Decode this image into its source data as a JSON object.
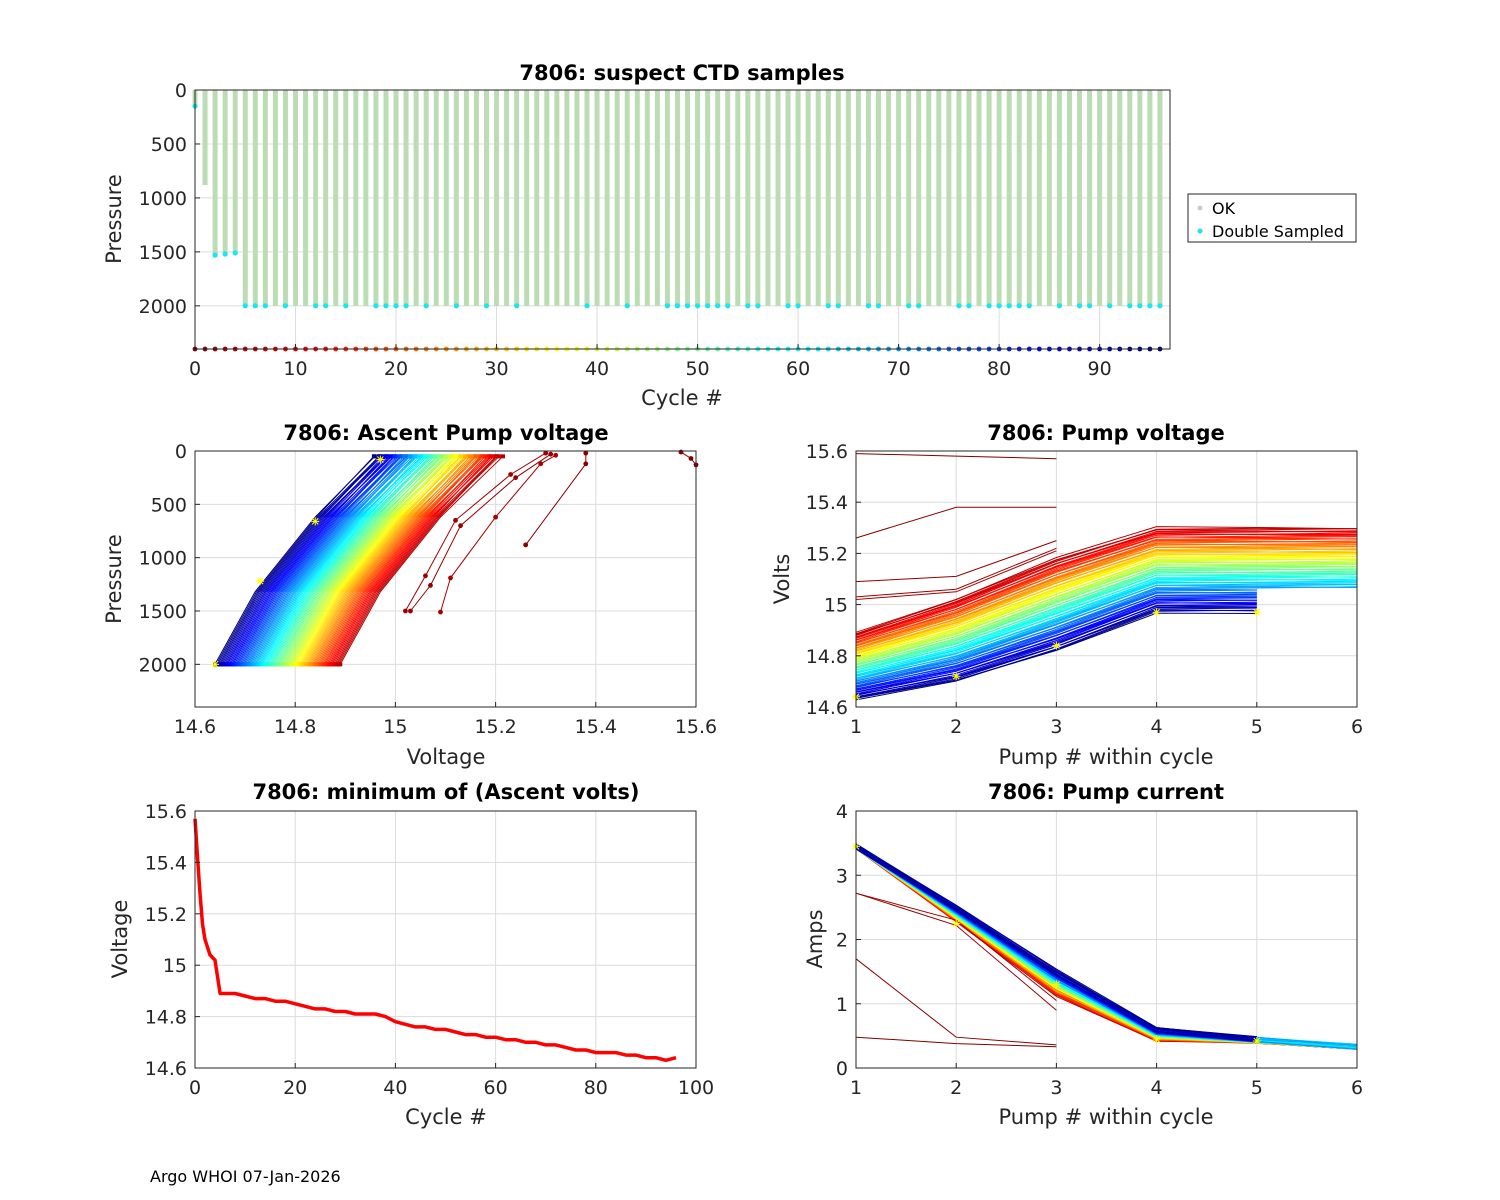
{
  "footer": "Argo WHOI 07-Jan-2026",
  "colors": {
    "ok": "#bcdcb4",
    "double_sampled": "#18e6f0",
    "min_volts_line": "#ff0000",
    "marker": "#ffff00"
  },
  "chart_data": [
    {
      "id": "suspect_ctd",
      "type": "scatter",
      "title": "7806: suspect CTD samples",
      "xlabel": "Cycle #",
      "ylabel": "Pressure",
      "xlim": [
        0,
        97
      ],
      "ylim": [
        0,
        2400
      ],
      "y_reversed": true,
      "xticks": [
        "0",
        "10",
        "20",
        "30",
        "40",
        "50",
        "60",
        "70",
        "80",
        "90"
      ],
      "yticks": [
        "0",
        "500",
        "1000",
        "1500",
        "2000"
      ],
      "legend": {
        "position": "outside-right",
        "entries": [
          {
            "label": "OK",
            "color": "#c8c8c8"
          },
          {
            "label": "Double Sampled",
            "color": "#18e6f0"
          }
        ]
      },
      "profiles": {
        "cycles_first": 0,
        "cycles_last": 96,
        "max_pressure_by_cycle": {
          "0": 150,
          "1": 880,
          "2": 1520,
          "3": 1510,
          "4": 1500,
          "default": 2000
        }
      },
      "double_sampled": [
        {
          "cycle": 0,
          "pressure": 150
        },
        {
          "cycle": 2,
          "pressure": 1530
        },
        {
          "cycle": 3,
          "pressure": 1520
        },
        {
          "cycle": 4,
          "pressure": 1510
        },
        {
          "cycle": 5,
          "pressure": 2000
        },
        {
          "cycle": 6,
          "pressure": 2000
        },
        {
          "cycle": 7,
          "pressure": 2000
        },
        {
          "cycle": 9,
          "pressure": 2000
        },
        {
          "cycle": 12,
          "pressure": 2000
        },
        {
          "cycle": 13,
          "pressure": 2000
        },
        {
          "cycle": 15,
          "pressure": 2000
        },
        {
          "cycle": 18,
          "pressure": 2000
        },
        {
          "cycle": 19,
          "pressure": 2000
        },
        {
          "cycle": 20,
          "pressure": 2000
        },
        {
          "cycle": 21,
          "pressure": 2000
        },
        {
          "cycle": 23,
          "pressure": 2000
        },
        {
          "cycle": 26,
          "pressure": 2000
        },
        {
          "cycle": 29,
          "pressure": 2000
        },
        {
          "cycle": 32,
          "pressure": 2000
        },
        {
          "cycle": 39,
          "pressure": 2000
        },
        {
          "cycle": 43,
          "pressure": 2000
        },
        {
          "cycle": 47,
          "pressure": 2000
        },
        {
          "cycle": 48,
          "pressure": 2000
        },
        {
          "cycle": 49,
          "pressure": 2000
        },
        {
          "cycle": 50,
          "pressure": 2000
        },
        {
          "cycle": 51,
          "pressure": 2000
        },
        {
          "cycle": 52,
          "pressure": 2000
        },
        {
          "cycle": 53,
          "pressure": 2000
        },
        {
          "cycle": 55,
          "pressure": 2000
        },
        {
          "cycle": 56,
          "pressure": 2000
        },
        {
          "cycle": 59,
          "pressure": 2000
        },
        {
          "cycle": 60,
          "pressure": 2000
        },
        {
          "cycle": 63,
          "pressure": 2000
        },
        {
          "cycle": 64,
          "pressure": 2000
        },
        {
          "cycle": 67,
          "pressure": 2000
        },
        {
          "cycle": 68,
          "pressure": 2000
        },
        {
          "cycle": 71,
          "pressure": 2000
        },
        {
          "cycle": 72,
          "pressure": 2000
        },
        {
          "cycle": 76,
          "pressure": 2000
        },
        {
          "cycle": 77,
          "pressure": 2000
        },
        {
          "cycle": 79,
          "pressure": 2000
        },
        {
          "cycle": 80,
          "pressure": 2000
        },
        {
          "cycle": 81,
          "pressure": 2000
        },
        {
          "cycle": 82,
          "pressure": 2000
        },
        {
          "cycle": 83,
          "pressure": 2000
        },
        {
          "cycle": 86,
          "pressure": 2000
        },
        {
          "cycle": 88,
          "pressure": 2000
        },
        {
          "cycle": 89,
          "pressure": 2000
        },
        {
          "cycle": 91,
          "pressure": 2000
        },
        {
          "cycle": 93,
          "pressure": 2000
        },
        {
          "cycle": 94,
          "pressure": 2000
        },
        {
          "cycle": 95,
          "pressure": 2000
        },
        {
          "cycle": 96,
          "pressure": 2000
        }
      ],
      "cycle_marker_row_pressure": 2400
    },
    {
      "id": "ascent_pump_voltage",
      "type": "line",
      "title": "7806: Ascent Pump voltage",
      "xlabel": "Voltage",
      "ylabel": "Pressure",
      "xlim": [
        14.6,
        15.6
      ],
      "ylim": [
        0,
        2400
      ],
      "y_reversed": true,
      "xticks": [
        "14.6",
        "14.8",
        "15",
        "15.2",
        "15.4",
        "15.6"
      ],
      "yticks": [
        "0",
        "500",
        "1000",
        "1500",
        "2000"
      ],
      "series_colormap": "jet (cycle 0 = dark red ... cycle 96 = dark blue)",
      "profile_model": {
        "pressures": [
          2000,
          1320,
          620,
          50
        ],
        "shifts": [
          0,
          0.08,
          0.2,
          0.32
        ],
        "start_voltage_first_cycle": 14.89,
        "start_voltage_last_cycle": 14.64
      },
      "early_cycles": [
        {
          "cycle": 0,
          "points": [
            [
              15.57,
              10
            ],
            [
              15.59,
              70
            ],
            [
              15.6,
              130
            ]
          ]
        },
        {
          "cycle": 1,
          "points": [
            [
              15.26,
              880
            ],
            [
              15.38,
              120
            ],
            [
              15.38,
              20
            ]
          ]
        },
        {
          "cycle": 2,
          "points": [
            [
              15.03,
              1500
            ],
            [
              15.07,
              1260
            ],
            [
              15.13,
              700
            ],
            [
              15.24,
              250
            ],
            [
              15.31,
              30
            ]
          ]
        },
        {
          "cycle": 3,
          "points": [
            [
              15.02,
              1500
            ],
            [
              15.06,
              1170
            ],
            [
              15.12,
              650
            ],
            [
              15.23,
              220
            ],
            [
              15.3,
              20
            ]
          ]
        },
        {
          "cycle": 4,
          "points": [
            [
              15.09,
              1510
            ],
            [
              15.11,
              1190
            ],
            [
              15.2,
              620
            ],
            [
              15.29,
              120
            ],
            [
              15.32,
              40
            ]
          ]
        }
      ],
      "highlight_markers": [
        [
          14.64,
          2000
        ],
        [
          14.73,
          1220
        ],
        [
          14.84,
          660
        ],
        [
          14.97,
          80
        ]
      ]
    },
    {
      "id": "pump_voltage",
      "type": "line",
      "title": "7806: Pump voltage",
      "xlabel": "Pump # within cycle",
      "ylabel": "Volts",
      "xlim": [
        1,
        6
      ],
      "ylim": [
        14.6,
        15.6
      ],
      "xticks": [
        "1",
        "2",
        "3",
        "4",
        "5",
        "6"
      ],
      "yticks": [
        "14.6",
        "14.8",
        "15",
        "15.2",
        "15.4",
        "15.6"
      ],
      "series_colormap": "jet (cycle 0 = dark red ... cycle 96 = dark blue)",
      "early_cycles": [
        {
          "cycle": 0,
          "values": [
            15.59,
            15.58,
            15.57
          ]
        },
        {
          "cycle": 1,
          "values": [
            15.26,
            15.38,
            15.38
          ]
        },
        {
          "cycle": 2,
          "values": [
            15.09,
            15.11,
            15.25
          ]
        },
        {
          "cycle": 3,
          "values": [
            15.03,
            15.06,
            15.22
          ]
        },
        {
          "cycle": 4,
          "values": [
            15.02,
            15.05,
            15.21
          ]
        }
      ],
      "cycle_model": {
        "first": [
          14.89,
          15.02,
          15.18,
          15.3,
          15.3,
          15.3
        ],
        "last": [
          14.63,
          14.7,
          14.82,
          14.97,
          14.97,
          14.97
        ],
        "six_pumps_from_cycle": 5,
        "five_pumps_after_cycle": 70
      },
      "highlight_markers": [
        [
          1,
          14.64
        ],
        [
          2,
          14.72
        ],
        [
          3,
          14.84
        ],
        [
          4,
          14.97
        ],
        [
          5,
          14.97
        ]
      ]
    },
    {
      "id": "min_ascent_volts",
      "type": "line",
      "title": "7806: minimum of (Ascent volts)",
      "xlabel": "Cycle #",
      "ylabel": "Voltage",
      "xlim": [
        0,
        100
      ],
      "ylim": [
        14.6,
        15.6
      ],
      "xticks": [
        "0",
        "20",
        "40",
        "60",
        "80",
        "100"
      ],
      "yticks": [
        "14.6",
        "14.8",
        "15",
        "15.2",
        "15.4",
        "15.6"
      ],
      "x": [
        0,
        0.5,
        1,
        1.5,
        2,
        2.5,
        3,
        3.5,
        4,
        5,
        6,
        8,
        10,
        12,
        14,
        16,
        18,
        20,
        22,
        24,
        26,
        28,
        30,
        32,
        34,
        36,
        38,
        40,
        42,
        44,
        46,
        48,
        50,
        52,
        54,
        56,
        58,
        60,
        62,
        64,
        66,
        68,
        70,
        72,
        74,
        76,
        78,
        80,
        82,
        84,
        86,
        88,
        90,
        92,
        94,
        96
      ],
      "y": [
        15.57,
        15.42,
        15.28,
        15.16,
        15.1,
        15.07,
        15.04,
        15.03,
        15.02,
        14.89,
        14.89,
        14.89,
        14.88,
        14.87,
        14.87,
        14.86,
        14.86,
        14.85,
        14.84,
        14.83,
        14.83,
        14.82,
        14.82,
        14.81,
        14.81,
        14.81,
        14.8,
        14.78,
        14.77,
        14.76,
        14.76,
        14.75,
        14.75,
        14.74,
        14.73,
        14.73,
        14.72,
        14.72,
        14.71,
        14.71,
        14.7,
        14.7,
        14.69,
        14.69,
        14.68,
        14.67,
        14.67,
        14.66,
        14.66,
        14.66,
        14.65,
        14.65,
        14.64,
        14.64,
        14.63,
        14.64
      ]
    },
    {
      "id": "pump_current",
      "type": "line",
      "title": "7806: Pump current",
      "xlabel": "Pump # within cycle",
      "ylabel": "Amps",
      "xlim": [
        1,
        6
      ],
      "ylim": [
        0,
        4
      ],
      "xticks": [
        "1",
        "2",
        "3",
        "4",
        "5",
        "6"
      ],
      "yticks": [
        "0",
        "1",
        "2",
        "3",
        "4"
      ],
      "series_colormap": "jet (cycle 0 = dark red ... cycle 96 = dark blue)",
      "early_cycles": [
        {
          "cycle": 0,
          "values": [
            0.48,
            0.38,
            0.33
          ]
        },
        {
          "cycle": 1,
          "values": [
            1.7,
            0.48,
            0.36
          ]
        },
        {
          "cycle": 2,
          "values": [
            2.72,
            2.22,
            0.9
          ]
        },
        {
          "cycle": 3,
          "values": [
            2.72,
            2.3,
            1.05
          ]
        }
      ],
      "cycle_model": {
        "first": [
          3.45,
          2.3,
          1.15,
          0.45,
          0.42,
          0.33
        ],
        "last": [
          3.45,
          2.5,
          1.5,
          0.6,
          0.45,
          0.33
        ],
        "six_pumps_from_cycle": 4,
        "five_pumps_after_cycle": 70
      },
      "highlight_markers": [
        [
          1,
          3.45
        ],
        [
          2,
          2.25
        ],
        [
          3,
          1.3
        ],
        [
          4,
          0.45
        ],
        [
          5,
          0.42
        ]
      ]
    }
  ]
}
